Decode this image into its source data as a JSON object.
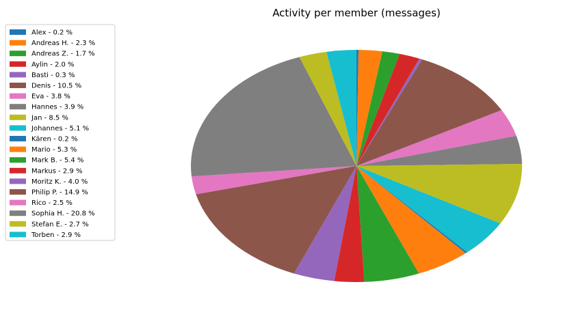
{
  "chart_data": {
    "type": "pie",
    "title": "Activity per member (messages)",
    "start_angle_deg": 90,
    "direction": "clockwise",
    "legend_placement": "upper-left",
    "slices": [
      {
        "label": "Alex - 0.2 %",
        "value": 0.2,
        "color": "#1f77b4"
      },
      {
        "label": "Andreas H. - 2.3 %",
        "value": 2.3,
        "color": "#ff7f0e"
      },
      {
        "label": "Andreas Z. - 1.7 %",
        "value": 1.7,
        "color": "#2ca02c"
      },
      {
        "label": "Aylin - 2.0 %",
        "value": 2.0,
        "color": "#d62728"
      },
      {
        "label": "Basti - 0.3 %",
        "value": 0.3,
        "color": "#9467bd"
      },
      {
        "label": "Denis - 10.5 %",
        "value": 10.5,
        "color": "#8c564b"
      },
      {
        "label": "Eva - 3.8 %",
        "value": 3.8,
        "color": "#e377c2"
      },
      {
        "label": "Hannes - 3.9 %",
        "value": 3.9,
        "color": "#7f7f7f"
      },
      {
        "label": "Jan - 8.5 %",
        "value": 8.5,
        "color": "#bcbd22"
      },
      {
        "label": "Johannes - 5.1 %",
        "value": 5.1,
        "color": "#17becf"
      },
      {
        "label": "Kären - 0.2 %",
        "value": 0.2,
        "color": "#1f77b4"
      },
      {
        "label": "Mario - 5.3 %",
        "value": 5.3,
        "color": "#ff7f0e"
      },
      {
        "label": "Mark B. - 5.4 %",
        "value": 5.4,
        "color": "#2ca02c"
      },
      {
        "label": "Markus - 2.9 %",
        "value": 2.9,
        "color": "#d62728"
      },
      {
        "label": "Moritz K. - 4.0 %",
        "value": 4.0,
        "color": "#9467bd"
      },
      {
        "label": "Philip P. - 14.9 %",
        "value": 14.9,
        "color": "#8c564b"
      },
      {
        "label": "Rico - 2.5 %",
        "value": 2.5,
        "color": "#e377c2"
      },
      {
        "label": "Sophia H. - 20.8 %",
        "value": 20.8,
        "color": "#7f7f7f"
      },
      {
        "label": "Stefan E. - 2.7 %",
        "value": 2.7,
        "color": "#bcbd22"
      },
      {
        "label": "Torben - 2.9 %",
        "value": 2.9,
        "color": "#17becf"
      }
    ]
  }
}
